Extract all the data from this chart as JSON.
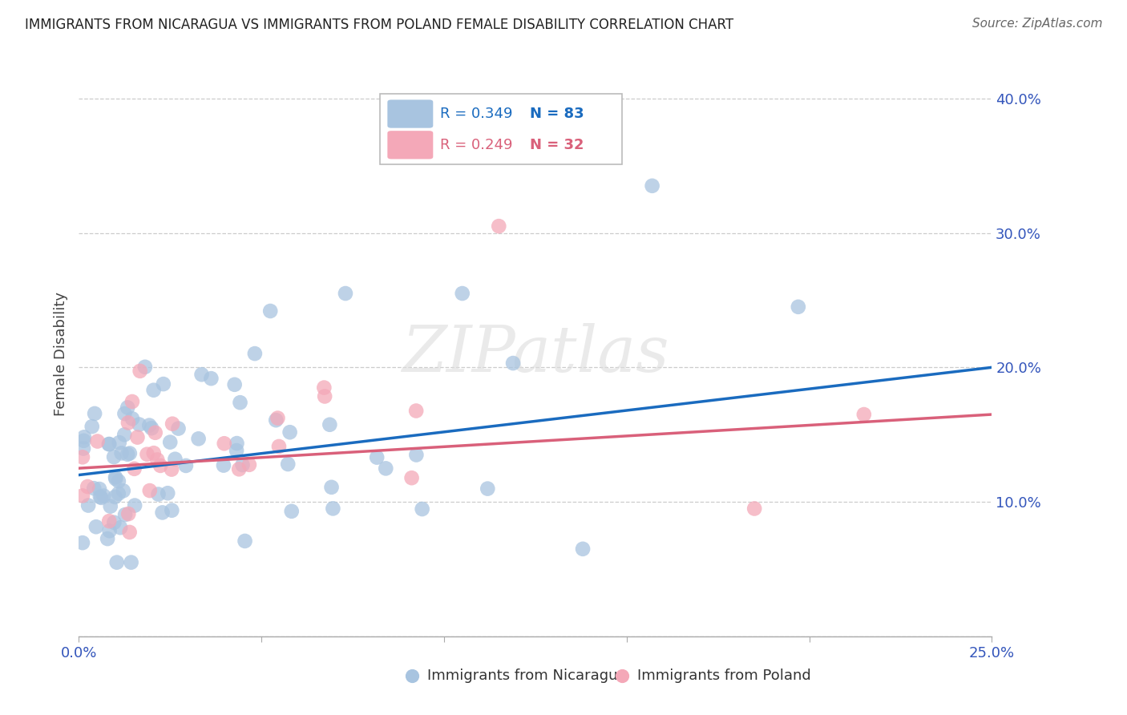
{
  "title": "IMMIGRANTS FROM NICARAGUA VS IMMIGRANTS FROM POLAND FEMALE DISABILITY CORRELATION CHART",
  "source": "Source: ZipAtlas.com",
  "ylabel": "Female Disability",
  "xlim": [
    0.0,
    0.25
  ],
  "ylim": [
    0.0,
    0.42
  ],
  "nicaragua_color": "#a8c4e0",
  "poland_color": "#f4a8b8",
  "nicaragua_line_color": "#1a6bbf",
  "poland_line_color": "#d9607a",
  "legend_R_nicaragua": "R = 0.349",
  "legend_N_nicaragua": "N = 83",
  "legend_R_poland": "R = 0.249",
  "legend_N_poland": "N = 32",
  "background_color": "#ffffff",
  "grid_color": "#cccccc",
  "title_color": "#222222",
  "source_color": "#666666",
  "tick_color": "#3355bb",
  "ylabel_color": "#444444"
}
